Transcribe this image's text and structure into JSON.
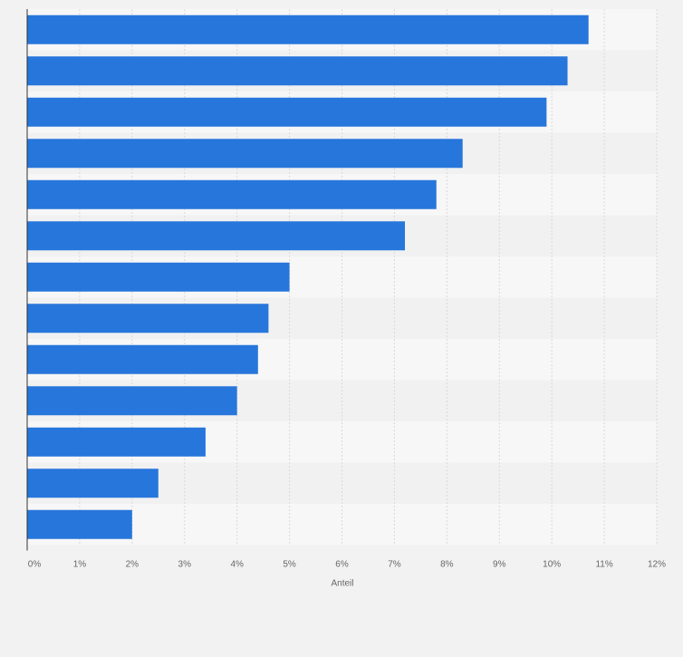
{
  "colors": {
    "bar": "#2776dc",
    "band_light": "#f7f7f7",
    "band_dark": "#f1f1f2",
    "grid": "#d9d9d9",
    "axis": "#333333",
    "tick_text": "#666666",
    "page_bg": "#f2f2f2"
  },
  "chart_data": {
    "type": "bar",
    "orientation": "horizontal",
    "title": "",
    "xlabel": "Anteil",
    "ylabel": "",
    "categories": [
      "",
      "",
      "",
      "",
      "",
      "",
      "",
      "",
      "",
      "",
      "",
      "",
      ""
    ],
    "values": [
      10.7,
      10.3,
      9.9,
      8.3,
      7.8,
      7.2,
      5.0,
      4.6,
      4.4,
      4.0,
      3.4,
      2.5,
      2.0
    ],
    "xlim": [
      0,
      12
    ],
    "xticks": [
      0,
      1,
      2,
      3,
      4,
      5,
      6,
      7,
      8,
      9,
      10,
      11,
      12
    ],
    "xtick_labels": [
      "0%",
      "1%",
      "2%",
      "3%",
      "4%",
      "5%",
      "6%",
      "7%",
      "8%",
      "9%",
      "10%",
      "11%",
      "12%"
    ],
    "grid": true,
    "legend": "none"
  }
}
